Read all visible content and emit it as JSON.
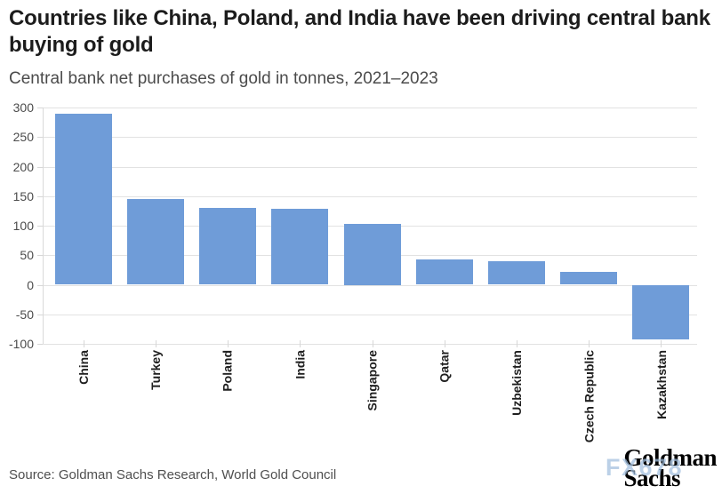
{
  "header": {
    "title": "Countries like China, Poland, and India have been driving central bank buying of gold",
    "subtitle": "Central bank net purchases of gold in tonnes, 2021–2023"
  },
  "chart_data": {
    "type": "bar",
    "title": "Countries like China, Poland, and India have been driving central bank buying of gold",
    "subtitle": "Central bank net purchases of gold in tonnes, 2021–2023",
    "categories": [
      "China",
      "Turkey",
      "Poland",
      "India",
      "Singapore",
      "Qatar",
      "Uzbekistan",
      "Czech Republic",
      "Kazakhstan"
    ],
    "values": [
      290,
      145,
      130,
      128,
      103,
      43,
      40,
      22,
      -93
    ],
    "xlabel": "",
    "ylabel": "",
    "ylim": [
      -100,
      300
    ],
    "yticks": [
      300,
      250,
      200,
      150,
      100,
      50,
      0,
      -50,
      -100
    ],
    "grid": "horizontal",
    "legend": "none",
    "bar_color": "#6f9cd8",
    "gridline_color": "#e2e2e2",
    "tick_label_color": "#4c4c4c",
    "category_label_color": "#1f1f1f"
  },
  "footer": {
    "source": "Source: Goldman Sachs Research, World Gold Council",
    "watermark": "FX678",
    "watermark_color": "#a2bfde",
    "logo": {
      "line1": "Goldman",
      "line2": "Sachs"
    }
  }
}
